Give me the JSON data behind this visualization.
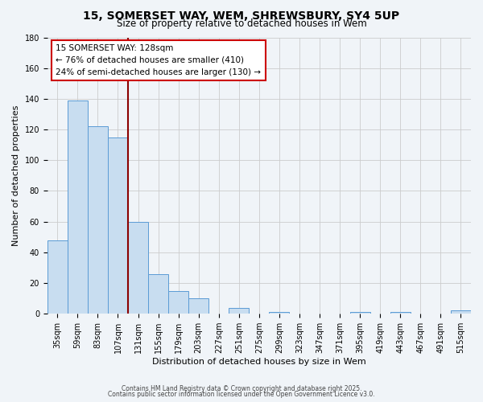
{
  "title": "15, SOMERSET WAY, WEM, SHREWSBURY, SY4 5UP",
  "subtitle": "Size of property relative to detached houses in Wem",
  "xlabel": "Distribution of detached houses by size in Wem",
  "ylabel": "Number of detached properties",
  "categories": [
    "35sqm",
    "59sqm",
    "83sqm",
    "107sqm",
    "131sqm",
    "155sqm",
    "179sqm",
    "203sqm",
    "227sqm",
    "251sqm",
    "275sqm",
    "299sqm",
    "323sqm",
    "347sqm",
    "371sqm",
    "395sqm",
    "419sqm",
    "443sqm",
    "467sqm",
    "491sqm",
    "515sqm"
  ],
  "values": [
    48,
    139,
    122,
    115,
    60,
    26,
    15,
    10,
    0,
    4,
    0,
    1,
    0,
    0,
    0,
    1,
    0,
    1,
    0,
    0,
    2
  ],
  "bar_color": "#c8ddf0",
  "bar_edge_color": "#5b9bd5",
  "grid_color": "#cccccc",
  "bg_color": "#f0f4f8",
  "vline_x_idx": 3.5,
  "vline_color": "#8b0000",
  "annotation_title": "15 SOMERSET WAY: 128sqm",
  "annotation_line1": "← 76% of detached houses are smaller (410)",
  "annotation_line2": "24% of semi-detached houses are larger (130) →",
  "annotation_box_color": "#ffffff",
  "annotation_box_edge": "#cc0000",
  "footer1": "Contains HM Land Registry data © Crown copyright and database right 2025.",
  "footer2": "Contains public sector information licensed under the Open Government Licence v3.0.",
  "ylim": [
    0,
    180
  ],
  "yticks": [
    0,
    20,
    40,
    60,
    80,
    100,
    120,
    140,
    160,
    180
  ],
  "title_fontsize": 10,
  "subtitle_fontsize": 8.5,
  "axis_label_fontsize": 8,
  "tick_fontsize": 7,
  "annotation_fontsize": 7.5,
  "footer_fontsize": 5.5
}
